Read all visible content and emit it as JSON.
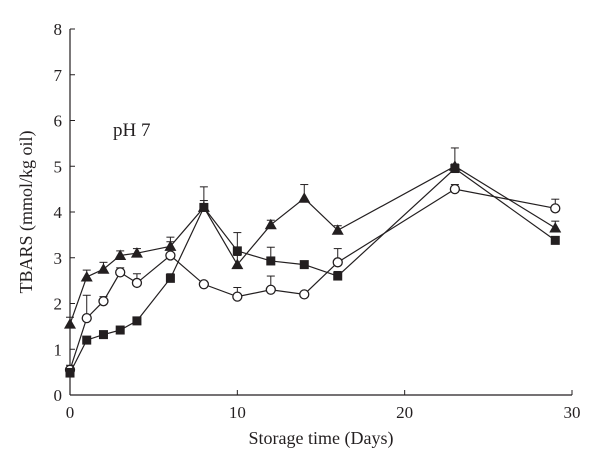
{
  "chart_data": {
    "type": "line",
    "annotation": "pH 7",
    "xlabel": "Storage time (Days)",
    "ylabel": "TBARS (mmol/kg oil)",
    "xlim": [
      0,
      30
    ],
    "ylim": [
      0,
      8
    ],
    "xticks": [
      0,
      10,
      20,
      30
    ],
    "yticks": [
      0,
      1,
      2,
      3,
      4,
      5,
      6,
      7,
      8
    ],
    "grid": false,
    "legend": "none",
    "series": [
      {
        "marker": "triangle-filled",
        "x": [
          0,
          1,
          2,
          3,
          4,
          6,
          8,
          10,
          12,
          14,
          16,
          23,
          29
        ],
        "y": [
          1.55,
          2.58,
          2.75,
          3.05,
          3.1,
          3.25,
          4.1,
          2.85,
          3.72,
          4.3,
          3.6,
          5.0,
          3.65
        ],
        "err": [
          0.15,
          0.15,
          0.15,
          0.1,
          0.1,
          0.2,
          0.15,
          0.2,
          0.1,
          0.3,
          0.1,
          0.4,
          0.15
        ]
      },
      {
        "marker": "circle-open",
        "x": [
          0,
          1,
          2,
          3,
          4,
          6,
          8,
          10,
          12,
          14,
          16,
          23,
          29
        ],
        "y": [
          0.55,
          1.68,
          2.05,
          2.68,
          2.45,
          3.05,
          2.42,
          2.15,
          2.3,
          2.2,
          2.9,
          4.5,
          4.08
        ],
        "err": [
          0.1,
          0.5,
          0.1,
          0.1,
          0.2,
          0.3,
          0.05,
          0.2,
          0.3,
          0.05,
          0.3,
          0.1,
          0.2
        ]
      },
      {
        "marker": "square-filled",
        "x": [
          0,
          1,
          2,
          3,
          4,
          6,
          8,
          10,
          12,
          14,
          16,
          23,
          29
        ],
        "y": [
          0.48,
          1.2,
          1.32,
          1.42,
          1.62,
          2.55,
          4.1,
          3.15,
          2.93,
          2.85,
          2.6,
          4.95,
          3.38
        ],
        "err": [
          0.1,
          0.05,
          0.05,
          0.05,
          0.05,
          0.1,
          0.45,
          0.4,
          0.3,
          0.05,
          0.1,
          0.1,
          0.05
        ]
      }
    ]
  }
}
